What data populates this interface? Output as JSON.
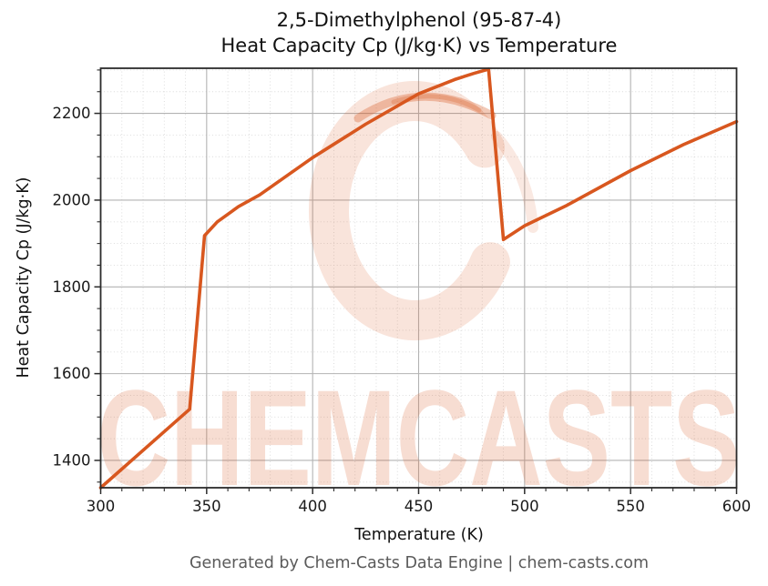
{
  "title": {
    "line1": "2,5-Dimethylphenol (95-87-4)",
    "line2": "Heat Capacity Cp (J/kg·K) vs Temperature"
  },
  "axes": {
    "x": {
      "label": "Temperature (K)",
      "min": 300,
      "max": 600,
      "major_ticks": [
        300,
        350,
        400,
        450,
        500,
        550,
        600
      ],
      "tick_labels": [
        "300",
        "350",
        "400",
        "450",
        "500",
        "550",
        "600"
      ],
      "minor_step": 10
    },
    "y": {
      "label": "Heat Capacity Cp (J/kg·K)",
      "min": 1337,
      "max": 2304,
      "major_ticks": [
        1400,
        1600,
        1800,
        2000,
        2200
      ],
      "tick_labels": [
        "1400",
        "1600",
        "1800",
        "2000",
        "2200"
      ],
      "minor_step": 50
    }
  },
  "footer": {
    "text": "Generated by Chem-Casts Data Engine | chem-casts.com"
  },
  "watermark": {
    "text": "CHEMCASTS",
    "logo": "chemcasts-c-ring-logo"
  },
  "colors": {
    "line": "#d8571f",
    "grid_major": "#b3b3b3",
    "grid_minor": "#d9d9d9",
    "spine": "#2b2b2b",
    "text": "#1a1a1a",
    "footer_text": "#5a5a5a",
    "watermark": "#d8571f"
  },
  "chart_data": {
    "type": "line",
    "title": "2,5-Dimethylphenol (95-87-4) Heat Capacity Cp (J/kg·K) vs Temperature",
    "xlabel": "Temperature (K)",
    "ylabel": "Heat Capacity Cp (J/kg·K)",
    "xlim": [
      300,
      600
    ],
    "ylim": [
      1337,
      2304
    ],
    "grid": true,
    "legend": false,
    "x": [
      300,
      342,
      349,
      355,
      365,
      375,
      400,
      425,
      450,
      467,
      476,
      483,
      490,
      500,
      520,
      550,
      575,
      600
    ],
    "y": [
      1337,
      1518,
      1918,
      1950,
      1985,
      2012,
      2098,
      2175,
      2245,
      2278,
      2292,
      2302,
      1909,
      1941,
      1988,
      2068,
      2128,
      2181
    ]
  }
}
